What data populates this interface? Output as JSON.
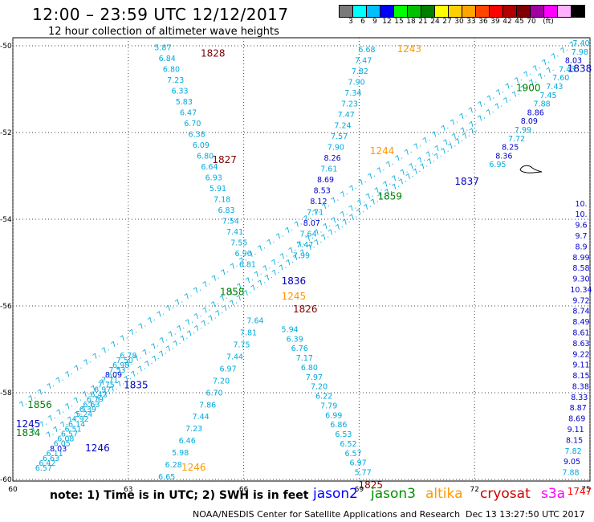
{
  "title": "12:00 – 23:59 UTC 12/12/2017",
  "subtitle": "12 hour collection of altimeter wave heights",
  "colorbar": {
    "unit": "(ft)",
    "colors": [
      "#7a7a7a",
      "#00ffff",
      "#00bfff",
      "#0000ff",
      "#00ff00",
      "#00c000",
      "#008000",
      "#ffff00",
      "#ffd000",
      "#ffa500",
      "#ff4500",
      "#ff0000",
      "#b00000",
      "#800000",
      "#a000a0",
      "#ff00ff",
      "#ffb0ff",
      "#000000"
    ],
    "labels": [
      "3",
      "6",
      "9",
      "12",
      "15",
      "18",
      "21",
      "24",
      "27",
      "30",
      "33",
      "36",
      "39",
      "42",
      "45",
      "70"
    ]
  },
  "axes": {
    "x_ticks": [
      "60",
      "63",
      "66",
      "69",
      "72",
      "75"
    ],
    "y_ticks": [
      "-50",
      "-52",
      "-54",
      "-56",
      "-58",
      "-60"
    ]
  },
  "map_labels": [
    {
      "text": "1828",
      "color": "#800000",
      "x": 65.2,
      "y": -50.25
    },
    {
      "text": "1827",
      "color": "#800000",
      "x": 65.5,
      "y": -52.7
    },
    {
      "text": "1836",
      "color": "#0000c0",
      "x": 67.3,
      "y": -55.5
    },
    {
      "text": "1858",
      "color": "#008000",
      "x": 65.7,
      "y": -55.75
    },
    {
      "text": "1245",
      "color": "#ff9900",
      "x": 67.3,
      "y": -55.85
    },
    {
      "text": "1826",
      "color": "#800000",
      "x": 67.6,
      "y": -56.15
    },
    {
      "text": "1835",
      "color": "#0000c0",
      "x": 63.2,
      "y": -57.9
    },
    {
      "text": "1856",
      "color": "#008000",
      "x": 60.7,
      "y": -58.35
    },
    {
      "text": "1245",
      "color": "#0000c0",
      "x": 60.4,
      "y": -58.8
    },
    {
      "text": "1834",
      "color": "#008000",
      "x": 60.4,
      "y": -59.0
    },
    {
      "text": "1246",
      "color": "#0000c0",
      "x": 62.2,
      "y": -59.35
    },
    {
      "text": "1246",
      "color": "#ff9900",
      "x": 64.7,
      "y": -59.8
    },
    {
      "text": "1825",
      "color": "#800000",
      "x": 69.3,
      "y": -60.2
    },
    {
      "text": "1243",
      "color": "#ff9900",
      "x": 70.3,
      "y": -50.15
    },
    {
      "text": "1900",
      "color": "#008000",
      "x": 73.4,
      "y": -51.05
    },
    {
      "text": "1838",
      "color": "#0000c0",
      "x": 76.2,
      "y": -50.6
    },
    {
      "text": "1244",
      "color": "#ff9900",
      "x": 69.6,
      "y": -52.5
    },
    {
      "text": "1837",
      "color": "#0000c0",
      "x": 71.8,
      "y": -53.2
    },
    {
      "text": "1859",
      "color": "#008000",
      "x": 69.8,
      "y": -53.55
    },
    {
      "text": "1747",
      "color": "#ff0000",
      "x": 74.9,
      "y": -60.35
    }
  ],
  "wave_heights": [
    {
      "track": "1828",
      "vals": [
        "5.87",
        "6.84",
        "6.80",
        "7.23",
        "6.33",
        "5.83",
        "6.47",
        "6.70",
        "6.38",
        "6.09",
        "6.80",
        "6.64",
        "6.93",
        "5.91",
        "7.18",
        "6.83",
        "7.54",
        "7.41",
        "7.55",
        "6.90",
        "6.81"
      ]
    },
    {
      "track": "1826",
      "vals": [
        "7.64",
        "7.81",
        "7.75",
        "7.44",
        "6.97",
        "7.20",
        "6.70",
        "7.86",
        "7.44",
        "7.23",
        "6.46",
        "5.98",
        "6.28",
        "6.65"
      ]
    },
    {
      "track": "1825",
      "vals": [
        "5.94",
        "6.39",
        "6.76",
        "7.17",
        "6.80",
        "7.97",
        "7.20",
        "6.22",
        "7.79",
        "6.99",
        "6.86",
        "6.53",
        "6.52",
        "6.57",
        "6.97",
        "5.77"
      ]
    },
    {
      "track": "1243",
      "vals": [
        "6.68",
        "7.47",
        "7.82",
        "7.90",
        "7.34",
        "7.23",
        "7.47",
        "7.24",
        "7.57",
        "7.90",
        "8.26",
        "7.61",
        "8.69",
        "8.53",
        "8.12",
        "7.71",
        "8.07",
        "7.64",
        "7.47",
        "7.99"
      ]
    },
    {
      "track": "1747",
      "vals": [
        "10.",
        "10.",
        "9.6",
        "9.7",
        "8.9",
        "8.99",
        "8.58",
        "9.30",
        "10.34",
        "9.72",
        "8.74",
        "8.49",
        "8.61",
        "8.63",
        "9.22",
        "9.11",
        "8.15",
        "8.38",
        "8.33",
        "8.87",
        "8.69",
        "9.11",
        "8.15",
        "7.82",
        "9.05",
        "7.88"
      ]
    },
    {
      "track": "1835",
      "vals": [
        "6.78",
        "7.50",
        "6.98",
        "7.53",
        "8.09",
        "7.71",
        "7.75",
        "6.97",
        "6.42",
        "6.79",
        "6.63",
        "6.39",
        "5.24",
        "4.92",
        "6.14",
        "6.51",
        "6.57",
        "6.08",
        "6.05",
        "8.03",
        "6.11",
        "6.63",
        "6.42",
        "6.57"
      ]
    },
    {
      "track": "1838",
      "vals": [
        "7.40",
        "7.98",
        "8.03",
        "7.43",
        "7.60",
        "7.43",
        "7.45",
        "7.88",
        "8.86",
        "8.09",
        "7.99",
        "7.72",
        "8.25",
        "8.36",
        "6.95"
      ]
    }
  ],
  "legend": [
    {
      "label": "jason2",
      "color": "#0000ff"
    },
    {
      "label": "jason3",
      "color": "#009000"
    },
    {
      "label": "altika",
      "color": "#ff9900"
    },
    {
      "label": "cryosat",
      "color": "#cc0000"
    },
    {
      "label": "s3a",
      "color": "#ff00ff"
    }
  ],
  "note": "note:  1) Time is in UTC;  2) SWH is in feet",
  "credit": "NOAA/NESDIS Center for Satellite Applications and Research",
  "timestamp": "Dec 13 13:27:50 UTC 2017"
}
